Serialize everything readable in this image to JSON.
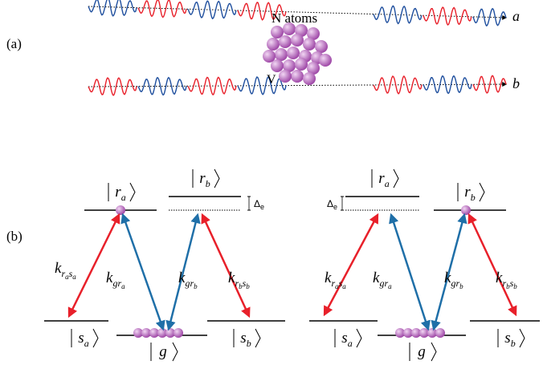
{
  "panel_a": {
    "label": "(a)",
    "atoms_label": "N atoms",
    "volume_label": "V",
    "beam_a": "a",
    "beam_b": "b"
  },
  "panel_b": {
    "label": "(b)",
    "diagrams": [
      {
        "levels": [
          {
            "t": "r",
            "s": "a"
          },
          {
            "t": "r",
            "s": "b"
          },
          {
            "t": "s",
            "s": "a"
          },
          {
            "t": "g"
          },
          {
            "t": "s",
            "s": "b"
          }
        ],
        "detuning": {
          "t": "Δ",
          "s": "e"
        },
        "couplings": [
          {
            "t": "k",
            "parts": [
              {
                "t": "r",
                "s": "a"
              },
              {
                "t": "s",
                "s": "a"
              }
            ]
          },
          {
            "t": "k",
            "parts": [
              {
                "t": "g"
              },
              {
                "t": "r",
                "s": "a"
              }
            ]
          },
          {
            "t": "k",
            "parts": [
              {
                "t": "g"
              },
              {
                "t": "r",
                "s": "b"
              }
            ]
          },
          {
            "t": "k",
            "parts": [
              {
                "t": "r",
                "s": "b"
              },
              {
                "t": "s",
                "s": "b"
              }
            ]
          }
        ]
      },
      {
        "levels": [
          {
            "t": "r",
            "s": "a"
          },
          {
            "t": "r",
            "s": "b"
          },
          {
            "t": "s",
            "s": "a"
          },
          {
            "t": "g"
          },
          {
            "t": "s",
            "s": "b"
          }
        ],
        "detuning": {
          "t": "Δ",
          "s": "e"
        },
        "couplings": [
          {
            "t": "k",
            "parts": [
              {
                "t": "r",
                "s": "a"
              },
              {
                "t": "s",
                "s": "a"
              }
            ]
          },
          {
            "t": "k",
            "parts": [
              {
                "t": "g"
              },
              {
                "t": "r",
                "s": "a"
              }
            ]
          },
          {
            "t": "k",
            "parts": [
              {
                "t": "g"
              },
              {
                "t": "r",
                "s": "b"
              }
            ]
          },
          {
            "t": "k",
            "parts": [
              {
                "t": "r",
                "s": "b"
              },
              {
                "t": "s",
                "s": "b"
              }
            ]
          }
        ]
      }
    ]
  }
}
